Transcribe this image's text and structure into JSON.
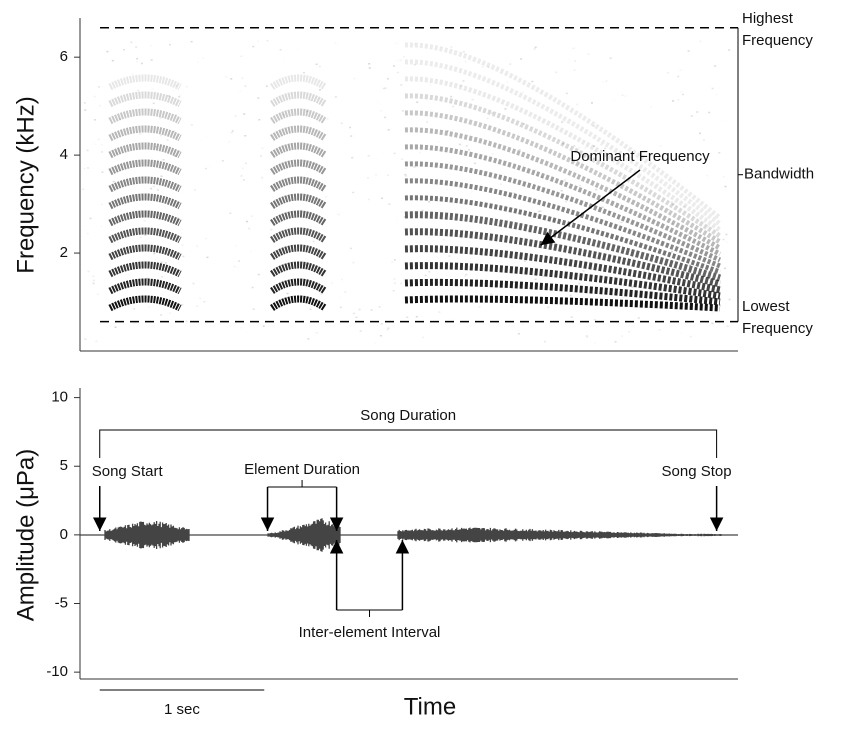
{
  "chart_data": [
    {
      "type": "spectrogram",
      "ylabel": "Frequency (kHz)",
      "xlim": [
        0,
        4
      ],
      "ylim": [
        0,
        6.8
      ],
      "yticks": [
        2,
        4,
        6
      ],
      "reference_lines": [
        {
          "value": 6.6,
          "label": "Highest Frequency"
        },
        {
          "value": 0.6,
          "label": "Lowest Frequency"
        }
      ],
      "bandwidth_label": "Bandwidth",
      "annotation": {
        "label": "Dominant Frequency",
        "x": 2.8,
        "y": 2.16
      }
    },
    {
      "type": "waveform",
      "ylabel": "Amplitude (μPa)",
      "xlabel": "Time",
      "xlim": [
        0,
        4
      ],
      "ylim": [
        -10.5,
        10.7
      ],
      "yticks": [
        10,
        5,
        0,
        -5,
        -10
      ],
      "song_duration": {
        "label": "Song Duration",
        "start": 0.12,
        "stop": 3.87
      },
      "markers": [
        {
          "label": "Song Start",
          "x": 0.12
        },
        {
          "label": "Song Stop",
          "x": 3.87
        }
      ],
      "element_duration": {
        "label": "Element Duration",
        "start": 1.14,
        "end": 1.56
      },
      "inter_element_interval": {
        "label": "Inter-element Interval",
        "start": 1.56,
        "end": 1.96
      },
      "scale_bar": {
        "label": "1 sec",
        "start": 0.12,
        "length": 1
      }
    }
  ]
}
